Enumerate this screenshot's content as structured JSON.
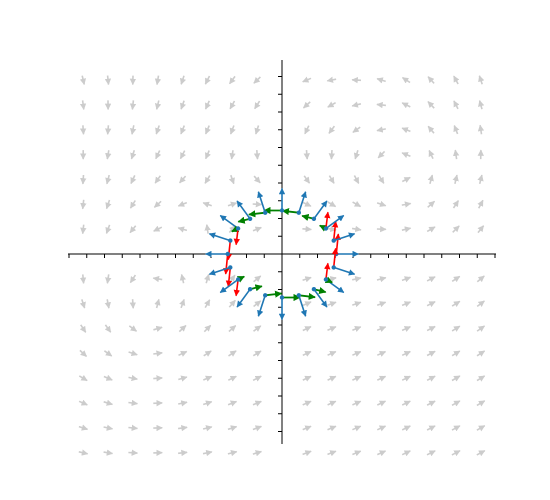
{
  "chart_data": {
    "type": "quiver",
    "title": "",
    "xlabel": "",
    "ylabel": "",
    "xlim": [
      -3,
      3
    ],
    "ylim": [
      -3,
      3
    ],
    "axes": "centered-at-origin",
    "tick_step": 0.25,
    "tick_labels": "none",
    "grid": false,
    "legend": "none",
    "background_field": {
      "description_free": true,
      "color": "#cccccc",
      "grid_x": [
        -2.8,
        -2.45,
        -2.1,
        -1.75,
        -1.4,
        -1.05,
        -0.7,
        -0.35,
        0.35,
        0.7,
        1.05,
        1.4,
        1.75,
        2.1,
        2.45,
        2.8
      ],
      "grid_y": [
        2.45,
        2.1,
        1.75,
        1.4,
        1.05,
        0.7,
        0.35,
        -0.35,
        -0.7,
        -1.05,
        -1.4,
        -1.75,
        -2.1,
        -2.45,
        -2.8
      ]
    },
    "circle": {
      "center": [
        0,
        0
      ],
      "radius": 0.85,
      "n_points": 20,
      "point_color": "#1f77b4"
    },
    "series": [
      {
        "name": "",
        "kind": "normal",
        "color": "#1f77b4"
      },
      {
        "name": "",
        "kind": "tangential",
        "color": "#008000"
      },
      {
        "name": "",
        "kind": "residual",
        "color": "#ff0000"
      }
    ]
  }
}
